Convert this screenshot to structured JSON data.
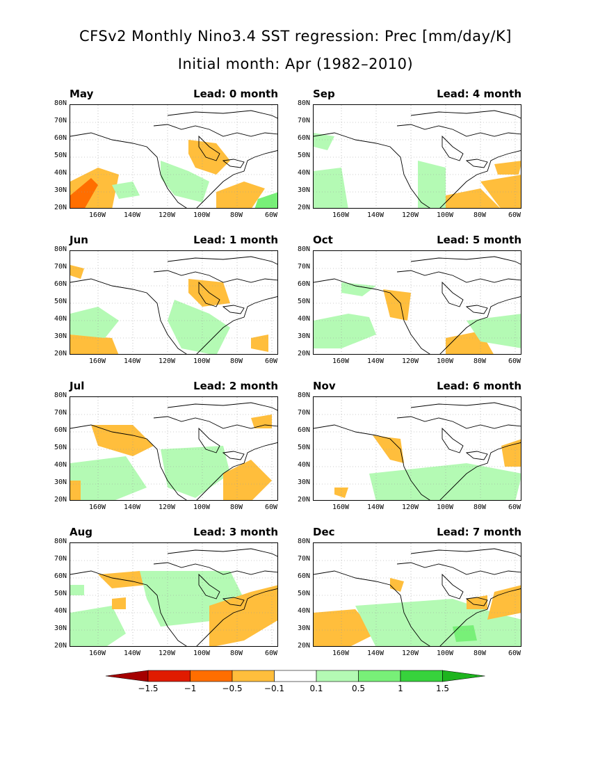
{
  "title": {
    "line1": "CFSv2 Monthly Nino3.4 SST regression: Prec [mm/day/K]",
    "line2": "Initial month: Apr (1982–2010)"
  },
  "map_axes": {
    "lat_labels": [
      "80N",
      "70N",
      "60N",
      "50N",
      "40N",
      "30N",
      "20N"
    ],
    "lon_labels": [
      "160W",
      "140W",
      "120W",
      "100W",
      "80W",
      "60W"
    ]
  },
  "panels": [
    {
      "month": "May",
      "lead": "Lead: 0 month"
    },
    {
      "month": "Sep",
      "lead": "Lead: 4 month"
    },
    {
      "month": "Jun",
      "lead": "Lead: 1 month"
    },
    {
      "month": "Oct",
      "lead": "Lead: 5 month"
    },
    {
      "month": "Jul",
      "lead": "Lead: 2 month"
    },
    {
      "month": "Nov",
      "lead": "Lead: 6 month"
    },
    {
      "month": "Aug",
      "lead": "Lead: 3 month"
    },
    {
      "month": "Dec",
      "lead": "Lead: 7 month"
    }
  ],
  "colorbar": {
    "labels": [
      "−1.5",
      "−1",
      "−0.5",
      "−0.1",
      "0.1",
      "0.5",
      "1",
      "1.5"
    ],
    "colors": [
      "#a50000",
      "#e01b00",
      "#ff6e00",
      "#ffbe3c",
      "#ffffff",
      "#b4fab4",
      "#78f078",
      "#37d23c",
      "#1eb41e"
    ]
  },
  "colors": {
    "orange": "#ffbe3c",
    "dark_orange": "#ff6e00",
    "light_green": "#b4fab4",
    "green": "#78f078"
  }
}
